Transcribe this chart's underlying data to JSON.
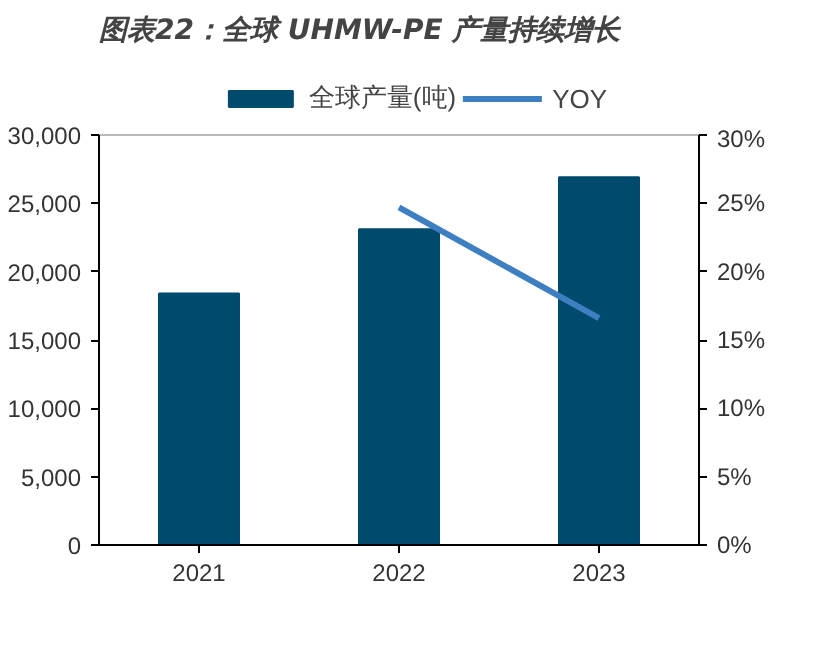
{
  "chart_data": {
    "type": "bar",
    "title": "图表22：全球 UHMW-PE 产量持续增长",
    "categories": [
      "2021",
      "2022",
      "2023"
    ],
    "series": [
      {
        "name": "全球产量(吨)",
        "color": "#004a6e",
        "values": [
          18400,
          23100,
          26900
        ]
      },
      {
        "name": "YOY",
        "type": "line",
        "axis": "y2",
        "color": "#3e7fc1",
        "values": [
          null,
          24.7,
          16.6
        ]
      }
    ],
    "ylim": [
      0,
      30000
    ],
    "yticks": [
      0,
      {
        "value": 5000,
        "label": "5,000"
      },
      {
        "value": 10000,
        "label": "10,000"
      },
      {
        "value": 15000,
        "label": "15,000"
      },
      {
        "value": 20000,
        "label": "20,000"
      },
      {
        "value": 25000,
        "label": "25,000"
      },
      {
        "value": 30000,
        "label": "30,000"
      }
    ],
    "y2lim": [
      0,
      30
    ],
    "y2ticks": [
      {
        "value": 0,
        "label": "0%"
      },
      {
        "value": 5,
        "label": "5%"
      },
      {
        "value": 10,
        "label": "10%"
      },
      {
        "value": 15,
        "label": "15%"
      },
      {
        "value": 20,
        "label": "20%"
      },
      {
        "value": 25,
        "label": "25%"
      },
      {
        "value": 30,
        "label": "30%"
      }
    ],
    "grid": false,
    "legend": "top"
  }
}
